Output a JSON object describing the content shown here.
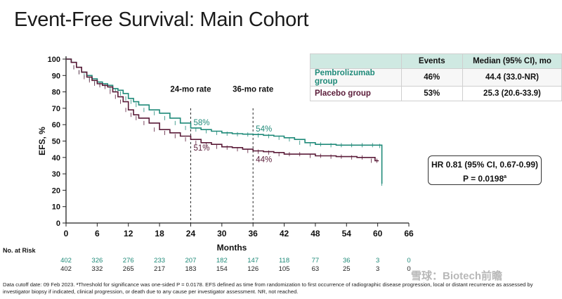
{
  "title": "Event-Free Survival: Main Cohort",
  "colors": {
    "pembrolizumab": "#1f8a79",
    "placebo": "#5a1b38",
    "table_header": "#cfe9e2"
  },
  "chart_data": {
    "type": "line",
    "xlabel": "Months",
    "ylabel": "EFS, %",
    "xlim": [
      0,
      66
    ],
    "ylim": [
      0,
      100
    ],
    "xticks": [
      0,
      6,
      12,
      18,
      24,
      30,
      36,
      42,
      48,
      54,
      60,
      66
    ],
    "yticks": [
      0,
      10,
      20,
      30,
      40,
      50,
      60,
      70,
      80,
      90,
      100
    ],
    "reference_lines": [
      {
        "x": 24,
        "label": "24-mo rate"
      },
      {
        "x": 36,
        "label": "36-mo rate"
      }
    ],
    "series": [
      {
        "name": "Pembrolizumab group",
        "color": "#1f8a79",
        "x": [
          0,
          1,
          2,
          3,
          4,
          5,
          6,
          7,
          8,
          9,
          10,
          11,
          12,
          13,
          14,
          16,
          18,
          20,
          22,
          24,
          26,
          28,
          30,
          32,
          34,
          36,
          38,
          40,
          42,
          44,
          46,
          48,
          50,
          52,
          54,
          56,
          58,
          60,
          60.8,
          60.8
        ],
        "y": [
          100,
          98,
          95,
          92,
          90,
          88,
          86,
          85,
          84,
          82,
          81,
          79,
          76,
          74,
          72,
          69,
          67,
          64,
          61,
          58,
          57,
          56,
          55,
          54.5,
          54.2,
          54,
          53.5,
          53,
          52,
          51,
          49,
          48,
          48,
          47.5,
          47.5,
          47.5,
          47.5,
          47.5,
          47,
          24
        ]
      },
      {
        "name": "Placebo group",
        "color": "#5a1b38",
        "x": [
          0,
          1,
          2,
          3,
          4,
          5,
          6,
          7,
          8,
          9,
          10,
          11,
          12,
          13,
          14,
          16,
          18,
          20,
          22,
          24,
          26,
          28,
          30,
          32,
          34,
          36,
          38,
          40,
          42,
          44,
          46,
          48,
          50,
          52,
          54,
          56,
          58,
          59.5,
          60.2
        ],
        "y": [
          100,
          98,
          95,
          92,
          89,
          87,
          85,
          84,
          83,
          80,
          77,
          74,
          69,
          66,
          64,
          61,
          57,
          55,
          53,
          51,
          49,
          48,
          46.5,
          46,
          45,
          44,
          43.5,
          43,
          42,
          42,
          42,
          41,
          41,
          40.5,
          40.5,
          40,
          40,
          38,
          38
        ]
      }
    ],
    "point_labels": [
      {
        "series": "Pembrolizumab group",
        "x": 24,
        "y": 58,
        "text": "58%"
      },
      {
        "series": "Pembrolizumab group",
        "x": 36,
        "y": 54,
        "text": "54%"
      },
      {
        "series": "Placebo group",
        "x": 24,
        "y": 51,
        "text": "51%"
      },
      {
        "series": "Placebo group",
        "x": 36,
        "y": 44,
        "text": "44%"
      }
    ],
    "at_risk": {
      "label": "No. at Risk",
      "times": [
        0,
        6,
        12,
        18,
        24,
        30,
        36,
        42,
        48,
        54,
        60,
        66
      ],
      "pembrolizumab": [
        "402",
        "326",
        "276",
        "233",
        "207",
        "182",
        "147",
        "118",
        "77",
        "36",
        "3",
        "0"
      ],
      "placebo": [
        "402",
        "332",
        "265",
        "217",
        "183",
        "154",
        "126",
        "105",
        "63",
        "25",
        "3",
        "0"
      ]
    }
  },
  "table": {
    "headers": [
      "Events",
      "Median (95% CI), mo"
    ],
    "rows": [
      {
        "group": "Pembrolizumab group",
        "events": "46%",
        "median": "44.4 (33.0-NR)"
      },
      {
        "group": "Placebo group",
        "events": "53%",
        "median": "25.3 (20.6-33.9)"
      }
    ]
  },
  "hr_box": {
    "line1": "HR 0.81 (95% CI, 0.67-0.99)",
    "line2": "P = 0.0198",
    "sup": "a"
  },
  "footnote": "Data cutoff date: 09 Feb 2023. ᵃThreshold for significance was one-sided P = 0.0178. EFS defined as time from randomization to first occurrence of radiographic disease progression, local or distant recurrence as assessed by investigator biopsy if indicated, clinical progression, or death due to any cause per investigator assessment. NR, not reached.",
  "watermark": "雪球：Biotech前瞻"
}
